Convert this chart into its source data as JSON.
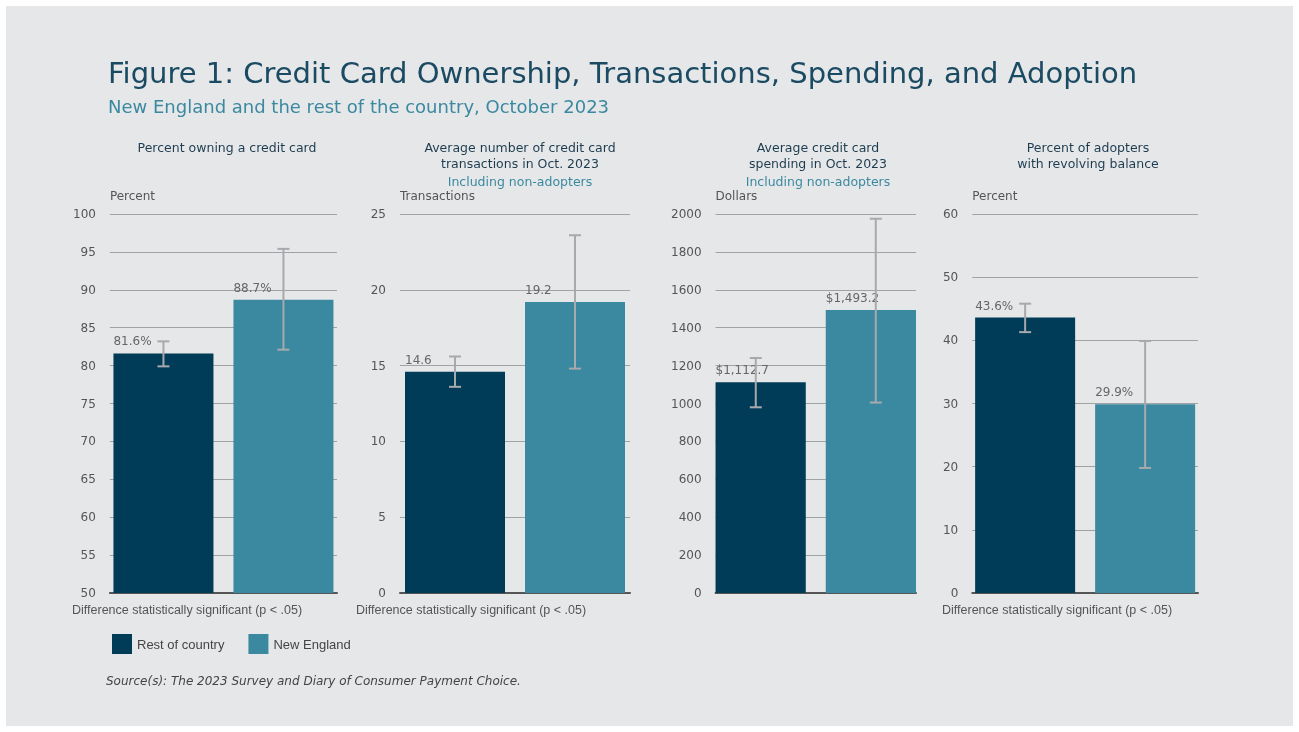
{
  "chart_data": [
    {
      "type": "bar",
      "title": "Percent owning a credit card",
      "ylabel": "Percent",
      "categories": [
        null
      ],
      "ylim": [
        50,
        100
      ],
      "yticks": [
        50,
        55,
        60,
        65,
        70,
        75,
        80,
        85,
        90,
        95,
        100
      ],
      "grid": "y",
      "legend": "bottom left",
      "series": [
        {
          "name": "Rest of country",
          "color": "#003b57",
          "values": [
            81.6
          ],
          "errors": [
            [
              79.9,
              83.2
            ]
          ],
          "value_labels": [
            "81.6%"
          ]
        },
        {
          "name": "New England",
          "color": "#3b89a0",
          "values": [
            88.7
          ],
          "errors": [
            [
              82.1,
              95.4
            ]
          ],
          "value_labels": [
            "88.7%"
          ]
        }
      ],
      "annotations": [
        "Figure 1: Credit Card Ownership, Transactions, Spending, and Adoption",
        "New England and the rest of the country, October 2023",
        "Difference statistically significant (p < .05)",
        "Source(s): The 2023 Survey and Diary of Consumer Payment Choice."
      ]
    },
    {
      "type": "bar",
      "title": "Average number of credit card\ntransactions in Oct. 2023",
      "subtitle": "Including non-adopters",
      "ylabel": "Transactions",
      "categories": [
        null
      ],
      "ylim": [
        0,
        25
      ],
      "yticks": [
        0,
        5,
        10,
        15,
        20,
        25
      ],
      "grid": "y",
      "series": [
        {
          "color": "#003b57",
          "values": [
            14.6
          ],
          "errors": [
            [
              13.6,
              15.6
            ]
          ],
          "value_labels": [
            "14.6"
          ]
        },
        {
          "color": "#3b89a0",
          "values": [
            19.2
          ],
          "errors": [
            [
              14.8,
              23.6
            ]
          ],
          "value_labels": [
            "19.2"
          ]
        }
      ],
      "annotations": [
        "Difference statistically significant (p < .05)"
      ]
    },
    {
      "type": "bar",
      "title": "Average credit card\nspending in Oct. 2023",
      "subtitle": "Including non-adopters",
      "ylabel": "Dollars",
      "categories": [
        null
      ],
      "ylim": [
        0,
        2000
      ],
      "yticks": [
        0,
        200,
        400,
        600,
        800,
        1000,
        1200,
        1400,
        1600,
        1800,
        2000
      ],
      "grid": "y",
      "series": [
        {
          "color": "#003b57",
          "values": [
            1112.7
          ],
          "errors": [
            [
              980,
              1240
            ]
          ],
          "value_labels": [
            "$1,112.7"
          ]
        },
        {
          "color": "#3b89a0",
          "values": [
            1493.2
          ],
          "errors": [
            [
              1005,
              1975
            ]
          ],
          "value_labels": [
            "$1,493.2"
          ]
        }
      ]
    },
    {
      "type": "bar",
      "title": "Percent of adopters\nwith revolving balance",
      "ylabel": "Percent",
      "categories": [
        null
      ],
      "ylim": [
        0,
        60
      ],
      "yticks": [
        0,
        10,
        20,
        30,
        40,
        50,
        60
      ],
      "grid": "y",
      "series": [
        {
          "color": "#003b57",
          "values": [
            43.6
          ],
          "errors": [
            [
              41.3,
              45.8
            ]
          ],
          "value_labels": [
            "43.6%"
          ]
        },
        {
          "color": "#3b89a0",
          "values": [
            29.9
          ],
          "errors": [
            [
              19.8,
              39.9
            ]
          ],
          "value_labels": [
            "29.9%"
          ]
        }
      ],
      "annotations": [
        "Difference statistically significant (p < .05)"
      ]
    }
  ]
}
